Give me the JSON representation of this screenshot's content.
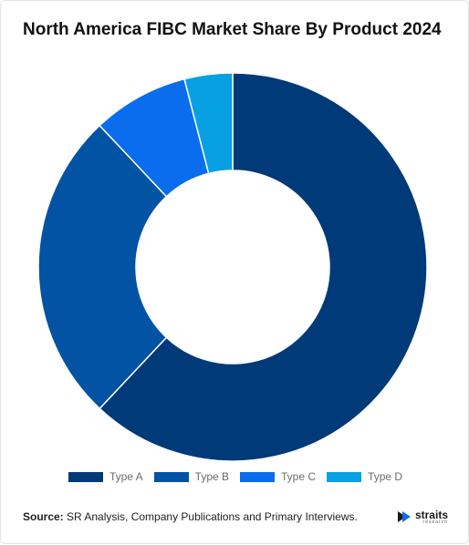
{
  "chart_data": {
    "type": "pie",
    "title": "North America FIBC Market Share By Product 2024",
    "categories": [
      "Type A",
      "Type B",
      "Type C",
      "Type D"
    ],
    "values": [
      62,
      26,
      8,
      4
    ],
    "colors": [
      "#003a78",
      "#0353a4",
      "#0a6ded",
      "#06a0e3"
    ],
    "donut": true,
    "legend": "bottom"
  },
  "footer": {
    "source_label": "Source:",
    "source_text": " SR Analysis, Company Publications and Primary Interviews."
  },
  "logo": {
    "name": "straits",
    "sub": "research"
  }
}
